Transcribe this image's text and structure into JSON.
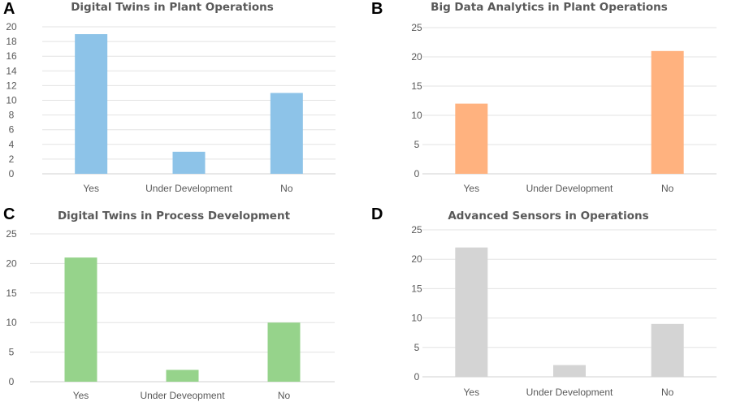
{
  "chart_data": [
    {
      "panel": "A",
      "type": "bar",
      "title": "Digital Twins in Plant Operations",
      "categories": [
        "Yes",
        "Under Development",
        "No"
      ],
      "values": [
        19,
        3,
        11
      ],
      "ylim": [
        0,
        20
      ],
      "yticks": [
        0,
        2,
        4,
        6,
        8,
        10,
        12,
        14,
        16,
        18,
        20
      ],
      "color": "#8dc3e8",
      "grid": true
    },
    {
      "panel": "B",
      "type": "bar",
      "title": "Big Data Analytics in Plant Operations",
      "categories": [
        "Yes",
        "Under Development",
        "No"
      ],
      "values": [
        12,
        0,
        21
      ],
      "ylim": [
        0,
        25
      ],
      "yticks": [
        0,
        5,
        10,
        15,
        20,
        25
      ],
      "color": "#ffb27f",
      "grid": true
    },
    {
      "panel": "C",
      "type": "bar",
      "title": "Digital Twins in Process Development",
      "categories": [
        "Yes",
        "Under Deveopment",
        "No"
      ],
      "values": [
        21,
        2,
        10
      ],
      "ylim": [
        0,
        25
      ],
      "yticks": [
        0,
        5,
        10,
        15,
        20,
        25
      ],
      "color": "#96d38b",
      "grid": true
    },
    {
      "panel": "D",
      "type": "bar",
      "title": "Advanced Sensors in Operations",
      "categories": [
        "Yes",
        "Under Development",
        "No"
      ],
      "values": [
        22,
        2,
        9
      ],
      "ylim": [
        0,
        25
      ],
      "yticks": [
        0,
        5,
        10,
        15,
        20,
        25
      ],
      "color": "#d4d4d4",
      "grid": true
    }
  ]
}
